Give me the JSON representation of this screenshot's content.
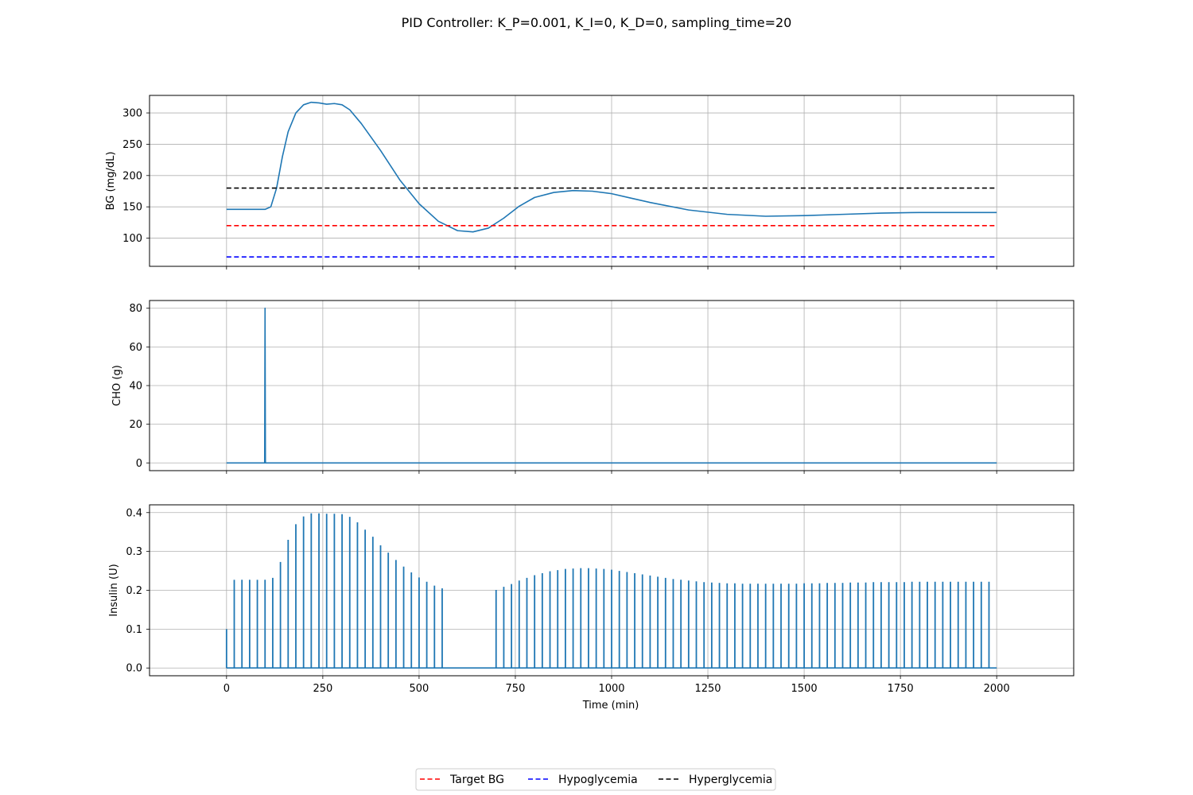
{
  "chart_data": {
    "type": "line",
    "title": "PID Controller: K_P=0.001, K_I=0, K_D=0, sampling_time=20",
    "xlabel": "Time (min)",
    "xlim": [
      -200,
      2200
    ],
    "xticks": [
      0,
      250,
      500,
      750,
      1000,
      1250,
      1500,
      1750,
      2000
    ],
    "grid": true,
    "legend": {
      "placement": "bottom-center",
      "entries": [
        {
          "label": "Target BG",
          "color": "#ff0000",
          "style": "dashed"
        },
        {
          "label": "Hypoglycemia",
          "color": "#0000ff",
          "style": "dashed"
        },
        {
          "label": "Hyperglycemia",
          "color": "#000000",
          "style": "dashed"
        }
      ]
    },
    "panels": [
      {
        "id": "bg",
        "ylabel": "BG (mg/dL)",
        "ylim": [
          55,
          328
        ],
        "yticks": [
          100,
          150,
          200,
          250,
          300
        ],
        "show_xticklabels": false,
        "series": [
          {
            "type": "line",
            "color": "#1f77b4",
            "x": [
              0,
              100,
              115,
              130,
              145,
              160,
              180,
              200,
              220,
              240,
              260,
              280,
              300,
              320,
              350,
              400,
              450,
              500,
              550,
              600,
              640,
              680,
              720,
              760,
              800,
              850,
              900,
              950,
              1000,
              1050,
              1100,
              1200,
              1300,
              1400,
              1500,
              1600,
              1700,
              1800,
              1900,
              2000
            ],
            "y": [
              146,
              146,
              150,
              180,
              230,
              270,
              300,
              313,
              317,
              316,
              314,
              315,
              313,
              305,
              283,
              240,
              193,
              155,
              127,
              112,
              110,
              116,
              132,
              151,
              165,
              173,
              176,
              175,
              171,
              164,
              157,
              145,
              138,
              135,
              136,
              138,
              140,
              141,
              141,
              141
            ]
          },
          {
            "type": "hline",
            "label": "Hyperglycemia",
            "y": 180,
            "color": "#000000",
            "style": "dashed",
            "x_range": [
              0,
              2000
            ]
          },
          {
            "type": "hline",
            "label": "Target BG",
            "y": 120,
            "color": "#ff0000",
            "style": "dashed",
            "x_range": [
              0,
              2000
            ]
          },
          {
            "type": "hline",
            "label": "Hypoglycemia",
            "y": 70,
            "color": "#0000ff",
            "style": "dashed",
            "x_range": [
              0,
              2000
            ]
          }
        ]
      },
      {
        "id": "cho",
        "ylabel": "CHO (g)",
        "ylim": [
          -4,
          84
        ],
        "yticks": [
          0,
          20,
          40,
          60,
          80
        ],
        "show_xticklabels": false,
        "series": [
          {
            "type": "line",
            "color": "#1f77b4",
            "x": [
              0,
              99,
              100,
              101,
              2000
            ],
            "y": [
              0,
              0,
              80,
              0,
              0
            ]
          }
        ]
      },
      {
        "id": "insulin",
        "ylabel": "Insulin (U)",
        "ylim": [
          -0.02,
          0.42
        ],
        "yticks": [
          0.0,
          0.1,
          0.2,
          0.3,
          0.4
        ],
        "show_xticklabels": true,
        "series": [
          {
            "type": "spikes",
            "color": "#1f77b4",
            "baseline": 0,
            "x": [
              0,
              20,
              40,
              60,
              80,
              100,
              120,
              140,
              160,
              180,
              200,
              220,
              240,
              260,
              280,
              300,
              320,
              340,
              360,
              380,
              400,
              420,
              440,
              460,
              480,
              500,
              520,
              540,
              560,
              700,
              720,
              740,
              760,
              780,
              800,
              820,
              840,
              860,
              880,
              900,
              920,
              940,
              960,
              980,
              1000,
              1020,
              1040,
              1060,
              1080,
              1100,
              1120,
              1140,
              1160,
              1180,
              1200,
              1220,
              1240,
              1260,
              1280,
              1300,
              1320,
              1340,
              1360,
              1380,
              1400,
              1420,
              1440,
              1460,
              1480,
              1500,
              1520,
              1540,
              1560,
              1580,
              1600,
              1620,
              1640,
              1660,
              1680,
              1700,
              1720,
              1740,
              1760,
              1780,
              1800,
              1820,
              1840,
              1860,
              1880,
              1900,
              1920,
              1940,
              1960,
              1980
            ],
            "y": [
              0.1,
              0.227,
              0.227,
              0.227,
              0.227,
              0.227,
              0.232,
              0.273,
              0.33,
              0.37,
              0.39,
              0.398,
              0.398,
              0.397,
              0.397,
              0.396,
              0.389,
              0.375,
              0.356,
              0.338,
              0.316,
              0.297,
              0.278,
              0.261,
              0.246,
              0.233,
              0.222,
              0.212,
              0.205,
              0.201,
              0.209,
              0.216,
              0.225,
              0.232,
              0.239,
              0.244,
              0.249,
              0.252,
              0.255,
              0.256,
              0.257,
              0.257,
              0.256,
              0.255,
              0.253,
              0.25,
              0.247,
              0.244,
              0.241,
              0.238,
              0.235,
              0.232,
              0.229,
              0.227,
              0.225,
              0.223,
              0.221,
              0.22,
              0.219,
              0.218,
              0.218,
              0.217,
              0.217,
              0.217,
              0.217,
              0.217,
              0.217,
              0.217,
              0.217,
              0.218,
              0.218,
              0.218,
              0.219,
              0.219,
              0.219,
              0.22,
              0.22,
              0.22,
              0.221,
              0.221,
              0.221,
              0.221,
              0.221,
              0.222,
              0.222,
              0.222,
              0.222,
              0.222,
              0.222,
              0.222,
              0.222,
              0.222,
              0.222,
              0.222
            ]
          }
        ]
      }
    ]
  }
}
